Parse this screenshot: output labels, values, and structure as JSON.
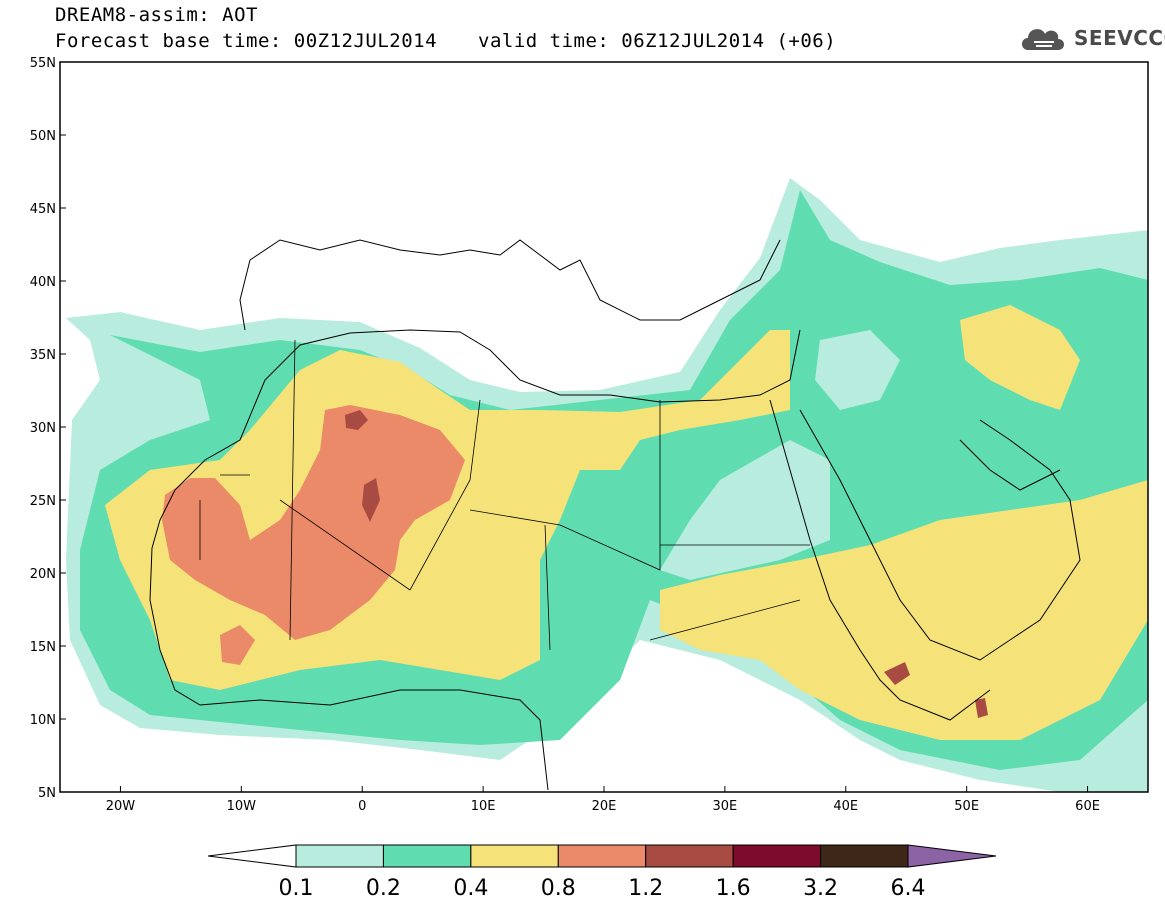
{
  "header": {
    "title": "DREAM8-assim: AOT",
    "base_time": "Forecast base time: 00Z12JUL2014",
    "valid_time": "valid time: 06Z12JUL2014 (+06)"
  },
  "logo": {
    "text": "SEEVCCC",
    "icon": "cloud-icon"
  },
  "axes": {
    "lat_labels": [
      "55N",
      "50N",
      "45N",
      "40N",
      "35N",
      "30N",
      "25N",
      "20N",
      "15N",
      "10N",
      "5N"
    ],
    "lon_labels": [
      "20W",
      "10W",
      "0",
      "10E",
      "20E",
      "30E",
      "40E",
      "50E",
      "60E"
    ],
    "lon_range": [
      -25,
      65
    ],
    "lat_range": [
      5,
      55
    ]
  },
  "colorbar": {
    "labels": [
      "0.1",
      "0.2",
      "0.4",
      "0.8",
      "1.2",
      "1.6",
      "3.2",
      "6.4"
    ],
    "colors": [
      "#ffffff",
      "#b8ecdf",
      "#5fdcb0",
      "#f5e37a",
      "#eb8a68",
      "#a84b43",
      "#7d0b2b",
      "#3e2718",
      "#8c63a5"
    ]
  },
  "colors": {
    "white": "#ffffff",
    "light_teal": "#b8ecdf",
    "teal": "#5fdcb0",
    "yellow": "#f5e37a",
    "orange": "#eb8a68",
    "dark_red": "#a84b43"
  }
}
